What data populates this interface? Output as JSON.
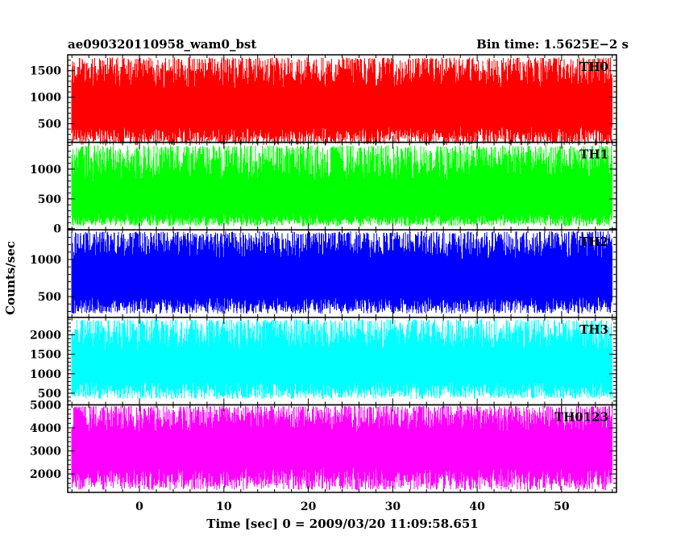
{
  "header": {
    "title": "ae090320110958_wam0_bst",
    "bin_time": "Bin time: 1.5625E−2 s"
  },
  "ylabel": "Counts/sec",
  "xlabel": "Time [sec] 0 = 2009/03/20 11:09:58.651",
  "chart_data": {
    "type": "line",
    "xlim": [
      -8.5,
      56.5
    ],
    "x_range": [
      -8.0,
      56.0
    ],
    "bin_time": 0.015625,
    "x_ticks": [
      0,
      10,
      20,
      30,
      40,
      50
    ],
    "x_tick_labels": [
      "0",
      "10",
      "20",
      "30",
      "40",
      "50"
    ],
    "panels": [
      {
        "name": "TH0",
        "color": "#ff0000",
        "ylim": [
          150,
          1800
        ],
        "y_ticks": [
          500,
          1000,
          1500
        ],
        "y_tick_labels": [
          "500",
          "1000",
          "1500"
        ],
        "mean": 800,
        "envelope_low": [
          100,
          450
        ],
        "envelope_high": [
          1150,
          1750
        ]
      },
      {
        "name": "TH1",
        "color": "#00ff00",
        "ylim": [
          -20,
          1450
        ],
        "y_ticks": [
          0,
          500,
          1000
        ],
        "y_tick_labels": [
          "0",
          "500",
          "1000"
        ],
        "mean": 450,
        "envelope_low": [
          40,
          250
        ],
        "envelope_high": [
          800,
          1400
        ]
      },
      {
        "name": "TH2",
        "color": "#0000ff",
        "ylim": [
          220,
          1400
        ],
        "y_ticks": [
          500,
          1000
        ],
        "y_tick_labels": [
          "500",
          "1000"
        ],
        "mean": 750,
        "envelope_low": [
          270,
          500
        ],
        "envelope_high": [
          1000,
          1380
        ]
      },
      {
        "name": "TH3",
        "color": "#00ffff",
        "ylim": [
          200,
          2450
        ],
        "y_ticks": [
          500,
          1000,
          1500,
          2000
        ],
        "y_tick_labels": [
          "500",
          "1000",
          "1500",
          "2000"
        ],
        "mean": 1100,
        "envelope_low": [
          350,
          800
        ],
        "envelope_high": [
          1600,
          2400
        ]
      },
      {
        "name": "TH0123",
        "color": "#ff00ff",
        "ylim": [
          1200,
          5000
        ],
        "y_ticks": [
          2000,
          3000,
          4000,
          5000
        ],
        "y_tick_labels": [
          "2000",
          "3000",
          "4000",
          "5000"
        ],
        "mean": 3000,
        "envelope_low": [
          1300,
          2300
        ],
        "envelope_high": [
          3800,
          4950
        ]
      }
    ]
  }
}
